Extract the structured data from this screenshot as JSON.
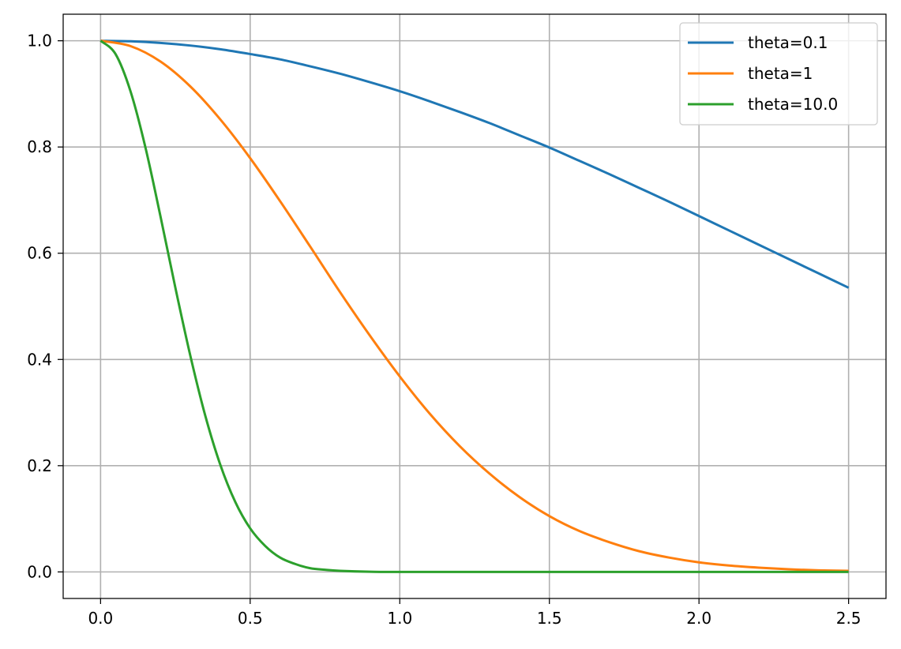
{
  "chart_data": {
    "type": "line",
    "title": "",
    "xlabel": "",
    "ylabel": "",
    "xlim": [
      -0.125,
      2.625
    ],
    "ylim": [
      -0.05,
      1.05
    ],
    "x_ticks": [
      0.0,
      0.5,
      1.0,
      1.5,
      2.0,
      2.5
    ],
    "x_tick_labels": [
      "0.0",
      "0.5",
      "1.0",
      "1.5",
      "2.0",
      "2.5"
    ],
    "y_ticks": [
      0.0,
      0.2,
      0.4,
      0.6,
      0.8,
      1.0
    ],
    "y_tick_labels": [
      "0.0",
      "0.2",
      "0.4",
      "0.6",
      "0.8",
      "1.0"
    ],
    "grid": true,
    "legend_position": "top-right",
    "series": [
      {
        "name": "theta=0.1",
        "color": "#1f77b4",
        "x": [
          0.0,
          0.1,
          0.2,
          0.3,
          0.4,
          0.5,
          0.6,
          0.7,
          0.8,
          0.9,
          1.0,
          1.1,
          1.2,
          1.3,
          1.4,
          1.5,
          1.6,
          1.7,
          1.8,
          1.9,
          2.0,
          2.1,
          2.2,
          2.3,
          2.4,
          2.5
        ],
        "y": [
          1.0,
          0.999,
          0.996,
          0.991,
          0.984,
          0.975,
          0.965,
          0.952,
          0.938,
          0.922,
          0.905,
          0.886,
          0.866,
          0.845,
          0.822,
          0.799,
          0.774,
          0.749,
          0.723,
          0.697,
          0.67,
          0.643,
          0.616,
          0.589,
          0.562,
          0.535
        ]
      },
      {
        "name": "theta=1",
        "color": "#ff7f0e",
        "x": [
          0.0,
          0.1,
          0.2,
          0.3,
          0.4,
          0.5,
          0.6,
          0.7,
          0.8,
          0.9,
          1.0,
          1.1,
          1.2,
          1.3,
          1.4,
          1.5,
          1.6,
          1.7,
          1.8,
          1.9,
          2.0,
          2.1,
          2.2,
          2.3,
          2.4,
          2.5
        ],
        "y": [
          1.0,
          0.99,
          0.961,
          0.914,
          0.852,
          0.779,
          0.698,
          0.613,
          0.527,
          0.445,
          0.368,
          0.298,
          0.237,
          0.185,
          0.141,
          0.105,
          0.077,
          0.056,
          0.039,
          0.027,
          0.018,
          0.012,
          0.008,
          0.005,
          0.003,
          0.002
        ]
      },
      {
        "name": "theta=10.0",
        "color": "#2ca02c",
        "x": [
          0.0,
          0.05,
          0.1,
          0.15,
          0.2,
          0.25,
          0.3,
          0.35,
          0.4,
          0.45,
          0.5,
          0.55,
          0.6,
          0.65,
          0.7,
          0.75,
          0.8,
          0.9,
          1.0,
          1.5,
          2.0,
          2.5
        ],
        "y": [
          1.0,
          0.975,
          0.905,
          0.799,
          0.67,
          0.535,
          0.407,
          0.294,
          0.202,
          0.132,
          0.082,
          0.049,
          0.027,
          0.015,
          0.007,
          0.004,
          0.002,
          0.0003,
          0.0,
          0.0,
          0.0,
          0.0
        ]
      }
    ]
  }
}
